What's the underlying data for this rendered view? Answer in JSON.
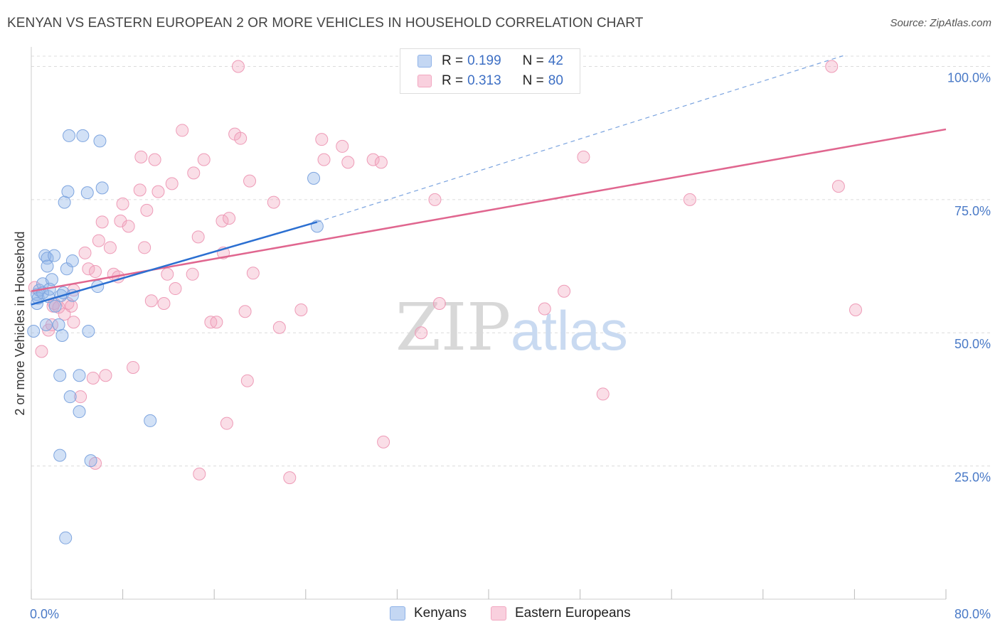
{
  "title": "KENYAN VS EASTERN EUROPEAN 2 OR MORE VEHICLES IN HOUSEHOLD CORRELATION CHART",
  "source": "Source: ZipAtlas.com",
  "watermark": {
    "zip": "ZIP",
    "atlas": "atlas"
  },
  "legend": {
    "rows": [
      {
        "r_label": "R =",
        "r_value": "0.199",
        "n_label": "N =",
        "n_value": "42"
      },
      {
        "r_label": "R =",
        "r_value": "0.313",
        "n_label": "N =",
        "n_value": "80"
      }
    ]
  },
  "bottom_legend": {
    "kenyans": "Kenyans",
    "eastern": "Eastern Europeans"
  },
  "colors": {
    "blue": "#8fb3e8",
    "blue_line": "#2b6fd1",
    "pink": "#f2a7c0",
    "pink_line": "#e0668f",
    "tick_text": "#4a7ac7"
  },
  "chart_data": {
    "type": "scatter",
    "title": "KENYAN VS EASTERN EUROPEAN 2 OR MORE VEHICLES IN HOUSEHOLD CORRELATION CHART",
    "xlabel": "",
    "ylabel": "2 or more Vehicles in Household",
    "xlim": [
      0,
      80
    ],
    "ylim": [
      0,
      103
    ],
    "x_tick_labels": {
      "min": "0.0%",
      "max": "80.0%"
    },
    "y_ticks": [
      {
        "value": 25,
        "label": "25.0%"
      },
      {
        "value": 50,
        "label": "50.0%"
      },
      {
        "value": 75,
        "label": "75.0%"
      },
      {
        "value": 100,
        "label": "100.0%"
      }
    ],
    "series": [
      {
        "name": "Kenyans",
        "r": 0.199,
        "n": 42,
        "trend": {
          "x0": 0,
          "y0": 55.3,
          "x1": 25,
          "y1": 70.8,
          "dashed_to_x": 71,
          "dashed_to_y": 102
        },
        "points": [
          [
            0.2,
            50.3
          ],
          [
            0.5,
            55.5
          ],
          [
            0.5,
            57.2
          ],
          [
            0.6,
            56.5
          ],
          [
            0.7,
            58.0
          ],
          [
            1.0,
            59.2
          ],
          [
            1.0,
            57.5
          ],
          [
            1.2,
            64.5
          ],
          [
            1.3,
            51.5
          ],
          [
            1.4,
            64.0
          ],
          [
            1.4,
            62.5
          ],
          [
            1.5,
            56.8
          ],
          [
            1.6,
            58.2
          ],
          [
            1.8,
            60.0
          ],
          [
            2.0,
            64.5
          ],
          [
            2.1,
            55.0
          ],
          [
            2.4,
            51.5
          ],
          [
            2.5,
            42.0
          ],
          [
            2.5,
            27.0
          ],
          [
            2.6,
            57.0
          ],
          [
            2.7,
            49.5
          ],
          [
            2.8,
            57.5
          ],
          [
            2.9,
            74.5
          ],
          [
            3.0,
            11.5
          ],
          [
            3.1,
            62.0
          ],
          [
            3.2,
            76.5
          ],
          [
            3.3,
            87.0
          ],
          [
            3.4,
            38.0
          ],
          [
            3.6,
            63.5
          ],
          [
            3.6,
            57.0
          ],
          [
            4.2,
            42.0
          ],
          [
            4.2,
            35.2
          ],
          [
            4.5,
            87.0
          ],
          [
            4.9,
            76.3
          ],
          [
            5.0,
            50.3
          ],
          [
            5.2,
            26.0
          ],
          [
            5.8,
            58.7
          ],
          [
            6.0,
            86.0
          ],
          [
            6.2,
            77.2
          ],
          [
            10.4,
            33.5
          ],
          [
            24.7,
            79.0
          ],
          [
            25.0,
            70.0
          ]
        ]
      },
      {
        "name": "Eastern Europeans",
        "r": 0.313,
        "n": 80,
        "trend": {
          "x0": 0,
          "y0": 57.8,
          "x1": 80,
          "y1": 88.2
        },
        "points": [
          [
            0.3,
            58.5
          ],
          [
            0.9,
            46.5
          ],
          [
            1.5,
            50.5
          ],
          [
            1.8,
            51.5
          ],
          [
            1.9,
            55.0
          ],
          [
            2.0,
            55.5
          ],
          [
            2.4,
            54.8
          ],
          [
            2.9,
            53.5
          ],
          [
            3.2,
            55.5
          ],
          [
            3.5,
            55.0
          ],
          [
            3.7,
            52.0
          ],
          [
            3.7,
            58.0
          ],
          [
            4.3,
            38.0
          ],
          [
            4.7,
            65.0
          ],
          [
            5.0,
            62.0
          ],
          [
            5.4,
            41.5
          ],
          [
            5.6,
            25.5
          ],
          [
            5.9,
            67.3
          ],
          [
            6.2,
            70.8
          ],
          [
            6.5,
            42.0
          ],
          [
            6.9,
            66.0
          ],
          [
            7.2,
            61.0
          ],
          [
            7.6,
            60.5
          ],
          [
            7.8,
            71.0
          ],
          [
            8.0,
            74.2
          ],
          [
            8.5,
            70.0
          ],
          [
            8.9,
            43.5
          ],
          [
            9.5,
            76.8
          ],
          [
            9.6,
            83.0
          ],
          [
            9.9,
            66.0
          ],
          [
            10.1,
            73.0
          ],
          [
            10.5,
            56.0
          ],
          [
            10.8,
            82.5
          ],
          [
            11.1,
            76.5
          ],
          [
            11.6,
            55.5
          ],
          [
            11.9,
            61.0
          ],
          [
            12.3,
            78.0
          ],
          [
            12.6,
            58.3
          ],
          [
            13.2,
            88.0
          ],
          [
            14.1,
            61.0
          ],
          [
            14.2,
            80.0
          ],
          [
            14.7,
            23.5
          ],
          [
            15.1,
            82.5
          ],
          [
            15.7,
            52.0
          ],
          [
            16.2,
            52.0
          ],
          [
            16.7,
            71.0
          ],
          [
            16.8,
            65.0
          ],
          [
            17.1,
            33.0
          ],
          [
            17.3,
            71.5
          ],
          [
            17.8,
            87.3
          ],
          [
            18.1,
            100.0
          ],
          [
            18.3,
            86.5
          ],
          [
            18.7,
            54.0
          ],
          [
            18.9,
            41.0
          ],
          [
            19.1,
            78.5
          ],
          [
            19.4,
            61.2
          ],
          [
            21.7,
            51.0
          ],
          [
            22.6,
            22.8
          ],
          [
            23.6,
            54.3
          ],
          [
            25.4,
            86.3
          ],
          [
            25.6,
            82.5
          ],
          [
            27.2,
            85.0
          ],
          [
            27.7,
            82.0
          ],
          [
            29.9,
            82.5
          ],
          [
            30.6,
            82.0
          ],
          [
            30.8,
            29.5
          ],
          [
            34.1,
            50.0
          ],
          [
            35.3,
            75.0
          ],
          [
            35.7,
            55.5
          ],
          [
            44.9,
            54.5
          ],
          [
            46.6,
            57.8
          ],
          [
            48.3,
            83.0
          ],
          [
            50.0,
            38.5
          ],
          [
            57.6,
            75.0
          ],
          [
            70.0,
            100.0
          ],
          [
            70.6,
            77.5
          ],
          [
            72.1,
            54.3
          ],
          [
            5.6,
            61.5
          ],
          [
            14.6,
            68.0
          ],
          [
            21.2,
            74.5
          ]
        ]
      }
    ]
  }
}
